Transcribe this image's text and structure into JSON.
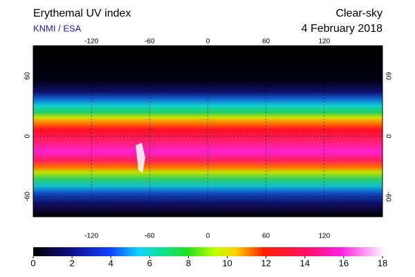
{
  "header": {
    "title": "Erythemal UV index",
    "source": "KNMI / ESA",
    "mode": "Clear-sky",
    "date": "4 February 2018"
  },
  "map": {
    "lon_range": [
      -180,
      180
    ],
    "lat_range": [
      -80,
      90
    ],
    "lon_ticks": [
      -120,
      -60,
      0,
      60,
      120
    ],
    "lat_ticks": [
      60,
      0,
      -60
    ]
  },
  "colorbar": {
    "range": [
      0,
      18
    ],
    "ticks": [
      0,
      2,
      4,
      6,
      8,
      10,
      12,
      14,
      16,
      18
    ]
  }
}
